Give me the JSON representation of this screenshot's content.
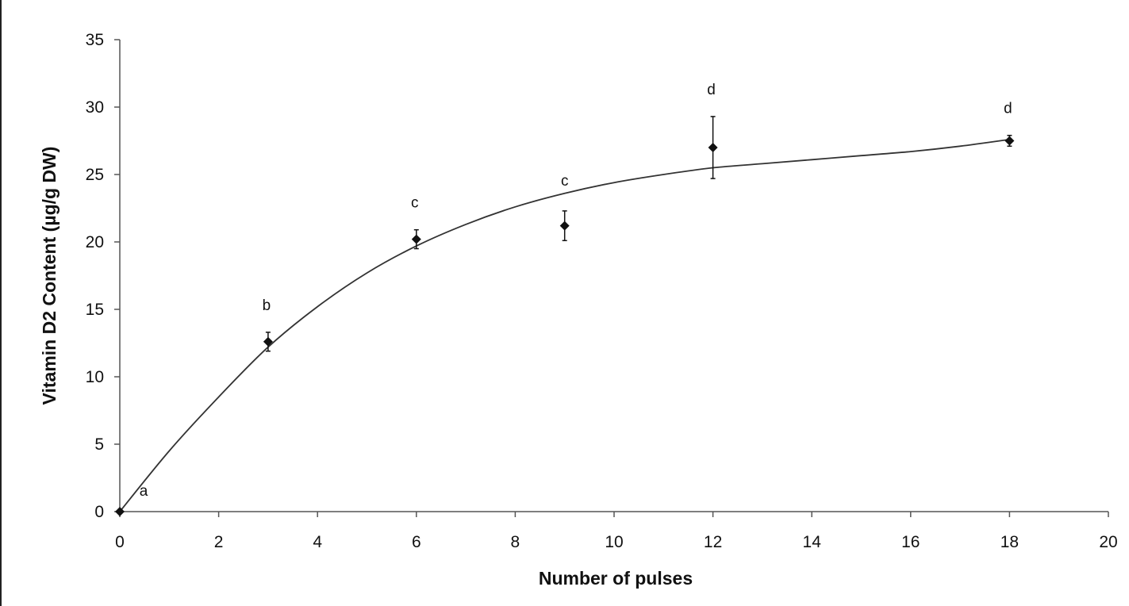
{
  "chart_data": {
    "type": "scatter",
    "xlabel": "Number of pulses",
    "ylabel": "Vitamin D2 Content (µg/g DW)",
    "xlim": [
      0,
      20
    ],
    "ylim": [
      0,
      35
    ],
    "x_ticks": [
      "0",
      "2",
      "4",
      "6",
      "8",
      "10",
      "12",
      "14",
      "16",
      "18",
      "20"
    ],
    "y_ticks": [
      "0",
      "5",
      "10",
      "15",
      "20",
      "25",
      "30",
      "35"
    ],
    "grid": false,
    "series": [
      {
        "points": [
          {
            "x": 0,
            "y": 0,
            "err": 0,
            "label": "a"
          },
          {
            "x": 3,
            "y": 12.6,
            "err": 0.7,
            "label": "b"
          },
          {
            "x": 6,
            "y": 20.2,
            "err": 0.7,
            "label": "c"
          },
          {
            "x": 9,
            "y": 21.2,
            "err": 1.1,
            "label": "c"
          },
          {
            "x": 12,
            "y": 27.0,
            "err": 2.3,
            "label": "d"
          },
          {
            "x": 18,
            "y": 27.5,
            "err": 0.4,
            "label": "d"
          }
        ]
      }
    ],
    "fit_curve": [
      [
        0,
        0
      ],
      [
        1,
        4.5
      ],
      [
        2,
        8.5
      ],
      [
        3,
        12.2
      ],
      [
        4,
        15.2
      ],
      [
        5,
        17.7
      ],
      [
        6,
        19.7
      ],
      [
        7,
        21.3
      ],
      [
        8,
        22.6
      ],
      [
        9,
        23.6
      ],
      [
        10,
        24.4
      ],
      [
        11,
        25.0
      ],
      [
        12,
        25.5
      ],
      [
        13,
        25.8
      ],
      [
        14,
        26.1
      ],
      [
        15,
        26.4
      ],
      [
        16,
        26.7
      ],
      [
        17,
        27.1
      ],
      [
        18,
        27.6
      ]
    ],
    "colors": {
      "marks": "#111111",
      "axis": "#555555"
    }
  }
}
